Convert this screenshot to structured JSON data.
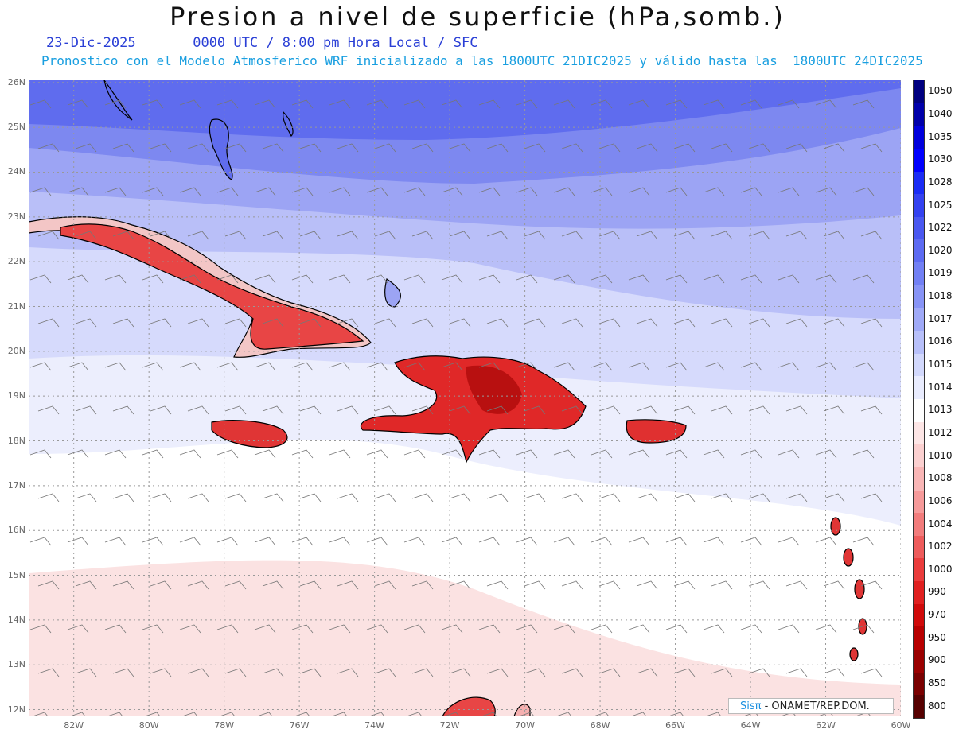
{
  "title": "Presion a nivel de superficie (hPa,somb.)",
  "subtitle_line1": "23-Dic-2025       0000 UTC / 8:00 pm Hora Local / SFC",
  "subtitle_line2": "Pronostico con el Modelo Atmosferico WRF inicializado a las 1800UTC_21DIC2025 y válido hasta las  1800UTC_24DIC2025",
  "credit": {
    "brand": "Sisπ",
    "text": " - ONAMET/REP.DOM."
  },
  "map": {
    "lon_range": [
      -83.2,
      -60
    ],
    "lat_range": [
      11.85,
      26.05
    ],
    "lat_labels": [
      "12N",
      "13N",
      "14N",
      "15N",
      "16N",
      "17N",
      "18N",
      "19N",
      "20N",
      "21N",
      "22N",
      "23N",
      "24N",
      "25N",
      "26N"
    ],
    "lon_labels": [
      "82W",
      "80W",
      "78W",
      "76W",
      "74W",
      "72W",
      "70W",
      "68W",
      "66W",
      "64W",
      "62W",
      "60W"
    ],
    "gridlines": "dotted",
    "wind_barbs": true
  },
  "colorbar": {
    "labels": [
      "1050",
      "1040",
      "1035",
      "1030",
      "1028",
      "1025",
      "1022",
      "1020",
      "1019",
      "1018",
      "1017",
      "1016",
      "1015",
      "1014",
      "1013",
      "1012",
      "1010",
      "1008",
      "1006",
      "1004",
      "1002",
      "1000",
      "990",
      "970",
      "950",
      "900",
      "850",
      "800"
    ],
    "colors": [
      "#000080",
      "#0000aa",
      "#0000dd",
      "#0000ff",
      "#1a2cf5",
      "#3442f0",
      "#4a58f0",
      "#5d6bf2",
      "#7280f4",
      "#8894f6",
      "#a0aaf8",
      "#b8c0fa",
      "#d2d8fc",
      "#e9ecfe",
      "#ffffff",
      "#fde6e6",
      "#fbd0d0",
      "#f9b6b6",
      "#f69a9a",
      "#f27c7c",
      "#ee5c5c",
      "#ea3c3c",
      "#e02020",
      "#d00a0a",
      "#b80000",
      "#9a0000",
      "#7a0000",
      "#560000"
    ]
  }
}
